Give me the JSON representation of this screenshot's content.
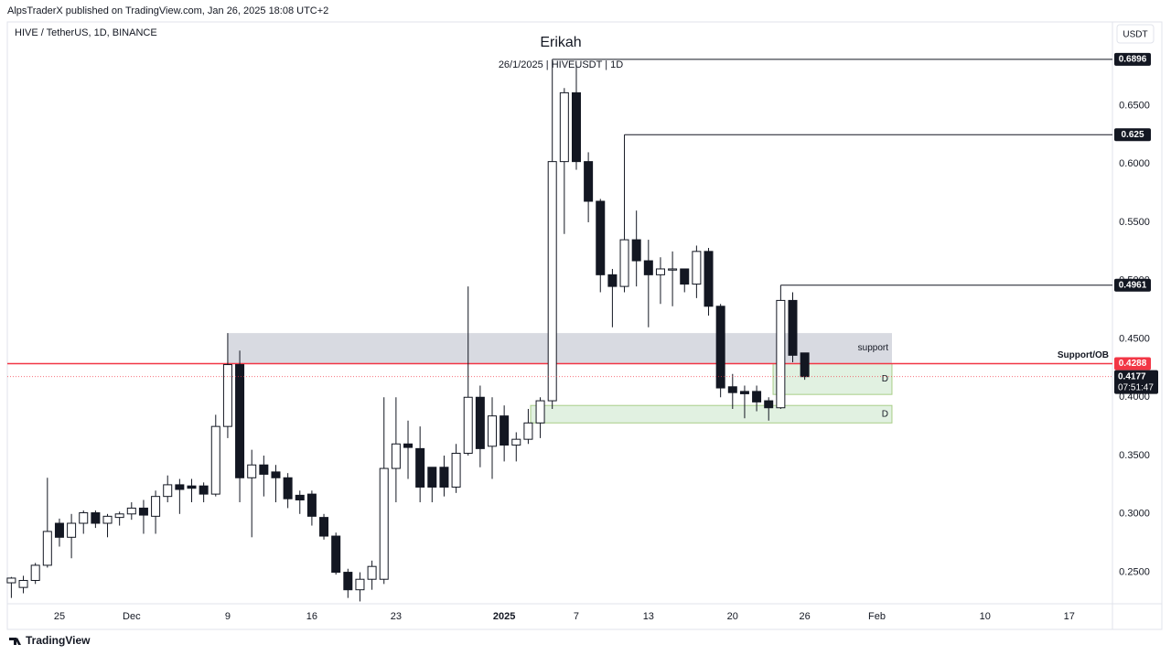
{
  "chart_data": {
    "type": "candlestick",
    "publisher": "AlpsTraderX published on TradingView.com, Jan 26, 2025 18:08 UTC+2",
    "symbol": "HIVE / TetherUS, 1D, BINANCE",
    "title": "Erikah",
    "subtitle": "26/1/2025 | HIVEUSDT | 1D",
    "currency": "USDT",
    "brand": "TradingView",
    "countdown": "07:51:47",
    "categories": [
      null,
      null,
      null,
      null,
      "25",
      null,
      null,
      null,
      null,
      null,
      "Dec",
      null,
      null,
      null,
      null,
      null,
      null,
      null,
      "9",
      null,
      null,
      null,
      null,
      null,
      null,
      "16",
      null,
      null,
      null,
      null,
      null,
      null,
      "23",
      null,
      null,
      null,
      null,
      null,
      null,
      null,
      null,
      "2025",
      null,
      null,
      null,
      null,
      null,
      "7",
      null,
      null,
      null,
      null,
      null,
      "13",
      null,
      null,
      null,
      null,
      null,
      null,
      "20",
      null,
      null,
      null,
      null,
      null,
      "26",
      null,
      null,
      null,
      null,
      null,
      "Feb",
      null,
      null,
      null,
      null,
      null,
      null,
      null,
      null,
      "10",
      null,
      null,
      null,
      null,
      null,
      null,
      "17",
      null,
      null,
      null
    ],
    "open": [
      0.241,
      0.237,
      0.243,
      0.256,
      0.292,
      0.28,
      0.292,
      0.301,
      0.292,
      0.297,
      0.3,
      0.305,
      0.298,
      0.315,
      0.325,
      0.324,
      0.324,
      0.317,
      0.375,
      0.428,
      0.331,
      0.342,
      0.336,
      0.331,
      0.316,
      0.317,
      0.297,
      0.281,
      0.25,
      0.235,
      0.244,
      0.244,
      0.339,
      0.36,
      0.356,
      0.34,
      0.34,
      0.323,
      0.352,
      0.4,
      0.358,
      0.384,
      0.359,
      0.364,
      0.378,
      0.397,
      0.602,
      0.661,
      0.602,
      0.568,
      0.505,
      0.495,
      0.535,
      0.517,
      0.505,
      0.509,
      0.51,
      0.497,
      0.525,
      0.478,
      0.409,
      0.405,
      0.405,
      0.397,
      0.391,
      0.483,
      0.438,
      null,
      null,
      null,
      null,
      null,
      null,
      null,
      null,
      null,
      null,
      null,
      null,
      null,
      null,
      null,
      null,
      null,
      null,
      null,
      null,
      null,
      null,
      null,
      null,
      null
    ],
    "high": [
      0.246,
      0.247,
      0.258,
      0.331,
      0.296,
      0.3,
      0.303,
      0.303,
      0.3,
      0.302,
      0.31,
      0.312,
      0.32,
      0.333,
      0.33,
      0.33,
      0.327,
      0.385,
      0.455,
      0.44,
      0.355,
      0.35,
      0.342,
      0.335,
      0.32,
      0.32,
      0.3,
      0.284,
      0.253,
      0.25,
      0.26,
      0.4,
      0.4,
      0.38,
      0.375,
      0.34,
      0.35,
      0.36,
      0.495,
      0.41,
      0.4,
      0.393,
      0.37,
      0.39,
      0.4,
      0.6896,
      0.665,
      0.685,
      0.61,
      0.57,
      0.51,
      0.625,
      0.56,
      0.535,
      0.52,
      0.525,
      0.51,
      0.53,
      0.528,
      0.48,
      0.42,
      0.41,
      0.41,
      0.4,
      0.4961,
      0.49,
      0.438,
      null,
      null,
      null,
      null,
      null,
      null,
      null,
      null,
      null,
      null,
      null,
      null,
      null,
      null,
      null,
      null,
      null,
      null,
      null,
      null,
      null,
      null,
      null,
      null,
      null
    ],
    "low": [
      0.228,
      0.232,
      0.24,
      0.254,
      0.272,
      0.262,
      0.283,
      0.288,
      0.28,
      0.29,
      0.295,
      0.283,
      0.283,
      0.31,
      0.3,
      0.31,
      0.31,
      0.315,
      0.365,
      0.31,
      0.28,
      0.315,
      0.31,
      0.305,
      0.3,
      0.29,
      0.278,
      0.248,
      0.228,
      0.225,
      0.235,
      0.24,
      0.31,
      0.33,
      0.31,
      0.31,
      0.315,
      0.318,
      0.35,
      0.34,
      0.33,
      0.345,
      0.345,
      0.36,
      0.365,
      0.39,
      0.54,
      0.595,
      0.55,
      0.49,
      0.46,
      0.49,
      0.495,
      0.46,
      0.48,
      0.478,
      0.49,
      0.485,
      0.47,
      0.4,
      0.39,
      0.382,
      0.388,
      0.38,
      0.39,
      0.43,
      0.415,
      null,
      null,
      null,
      null,
      null,
      null,
      null,
      null,
      null,
      null,
      null,
      null,
      null,
      null,
      null,
      null,
      null,
      null,
      null,
      null,
      null,
      null,
      null,
      null,
      null
    ],
    "close": [
      0.245,
      0.243,
      0.256,
      0.285,
      0.28,
      0.292,
      0.301,
      0.292,
      0.298,
      0.3,
      0.305,
      0.299,
      0.315,
      0.325,
      0.321,
      0.322,
      0.317,
      0.375,
      0.428,
      0.331,
      0.342,
      0.334,
      0.331,
      0.313,
      0.312,
      0.298,
      0.281,
      0.25,
      0.235,
      0.244,
      0.255,
      0.339,
      0.36,
      0.357,
      0.323,
      0.323,
      0.323,
      0.352,
      0.4,
      0.356,
      0.384,
      0.359,
      0.364,
      0.378,
      0.397,
      0.602,
      0.661,
      0.602,
      0.568,
      0.505,
      0.495,
      0.535,
      0.517,
      0.505,
      0.51,
      0.51,
      0.497,
      0.525,
      0.478,
      0.408,
      0.404,
      0.403,
      0.396,
      0.391,
      0.483,
      0.436,
      0.4177,
      null,
      null,
      null,
      null,
      null,
      null,
      null,
      null,
      null,
      null,
      null,
      null,
      null,
      null,
      null,
      null,
      null,
      null,
      null,
      null,
      null,
      null,
      null,
      null,
      null
    ],
    "ylim": [
      0.223,
      0.706
    ],
    "yticks": [
      {
        "value": 0.25,
        "label": "0.2500"
      },
      {
        "value": 0.3,
        "label": "0.3000"
      },
      {
        "value": 0.35,
        "label": "0.3500"
      },
      {
        "value": 0.4,
        "label": "0.4000"
      },
      {
        "value": 0.45,
        "label": "0.4500"
      },
      {
        "value": 0.5,
        "label": "0.5000"
      },
      {
        "value": 0.55,
        "label": "0.5500"
      },
      {
        "value": 0.6,
        "label": "0.6000"
      },
      {
        "value": 0.65,
        "label": "0.6500"
      }
    ],
    "grid": false,
    "levels": [
      0.6896,
      0.625,
      0.4961
    ],
    "support_line": {
      "label": "Support/OB",
      "value": 0.4288,
      "color": "#f23645"
    },
    "zones": [
      {
        "label": "support",
        "low": 0.4288,
        "high": 0.455,
        "color": "#d1d4dc"
      },
      {
        "label": "D",
        "low": 0.4024,
        "high": 0.4288,
        "color": "#c8e6c9"
      },
      {
        "label": "D",
        "low": 0.378,
        "high": 0.393,
        "color": "#c8e6c9"
      }
    ]
  }
}
